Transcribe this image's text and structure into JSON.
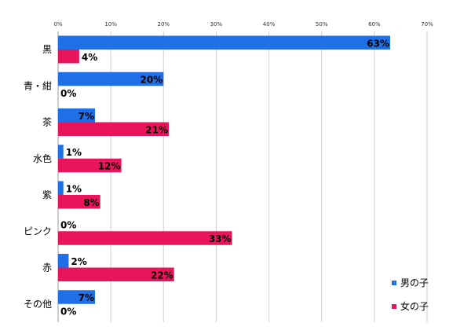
{
  "chart_data": {
    "type": "bar",
    "orientation": "horizontal",
    "title": "",
    "xlabel": "",
    "ylabel": "",
    "xlim": [
      0,
      70
    ],
    "x_ticks": [
      0,
      10,
      20,
      30,
      40,
      50,
      60,
      70
    ],
    "tick_suffix": "%",
    "grid": true,
    "legend_position": "bottom-right",
    "categories": [
      "黒",
      "青・紺",
      "茶",
      "水色",
      "紫",
      "ピンク",
      "赤",
      "その他"
    ],
    "series": [
      {
        "name": "男の子",
        "color": "#1e6fe8",
        "values": [
          63,
          20,
          7,
          1,
          1,
          0,
          2,
          7
        ]
      },
      {
        "name": "女の子",
        "color": "#e8155c",
        "values": [
          4,
          0,
          21,
          12,
          8,
          33,
          22,
          0
        ]
      }
    ]
  }
}
